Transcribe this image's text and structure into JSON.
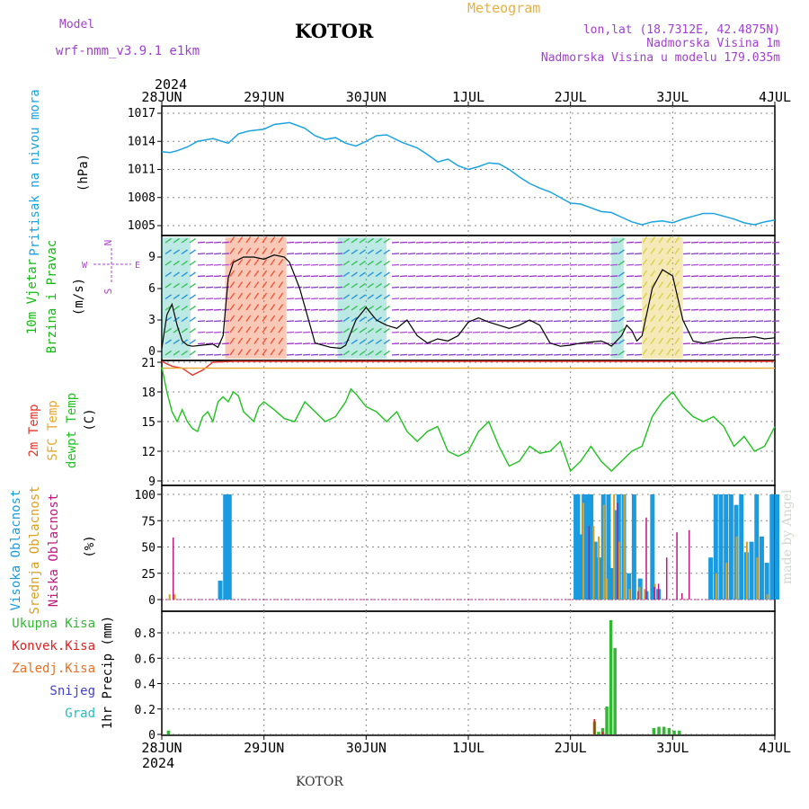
{
  "header": {
    "model_label": "Model",
    "model_name": "wrf-nmm_v3.9.1  e1km",
    "station": "KOTOR",
    "meteogram_label": "Meteogram",
    "coords": "lon,lat (18.7312E, 42.4875N)",
    "elevation": "Nadmorska Visina 1m",
    "model_elevation": "Nadmorska Visina u modelu 179.035m",
    "watermark": "made by Angel",
    "footer_station": "KOTOR"
  },
  "colors": {
    "pressure": "#1aa3e0",
    "temp2m": "#e8342a",
    "sfc_temp": "#e8a62a",
    "dewpt": "#1fc21f",
    "high_cloud": "#1a9be0",
    "mid_cloud": "#d8a020",
    "low_cloud": "#c01880",
    "total_precip": "#33b833",
    "conv_precip": "#e02020",
    "freeze": "#e87020",
    "snow": "#4040d0",
    "hail": "#20c0c0",
    "wind_label": "#11bb11",
    "wind_rose": "#b040d0"
  },
  "chart_data": [
    {
      "type": "line",
      "id": "pressure",
      "ylabel": "Pritisak na nivou mora",
      "unit": "(hPa)",
      "ylim": [
        1005,
        1017
      ],
      "yticks": [
        1005,
        1008,
        1011,
        1014,
        1017
      ],
      "x_start_label": "2024",
      "x_categories": [
        "28JUN",
        "29JUN",
        "30JUN",
        "1JUL",
        "2JUL",
        "3JUL",
        "4JUL"
      ],
      "grid": true,
      "series": [
        {
          "x": [
            0,
            0.08,
            0.15,
            0.25,
            0.35,
            0.5,
            0.65,
            0.75,
            0.85,
            1.0,
            1.1,
            1.25,
            1.4,
            1.5,
            1.6,
            1.7,
            1.8,
            1.9,
            2.0,
            2.1,
            2.2,
            2.35,
            2.5,
            2.6,
            2.7,
            2.8,
            2.9,
            3.0,
            3.1,
            3.2,
            3.3,
            3.4,
            3.5,
            3.6,
            3.7,
            3.8,
            3.9,
            4.0,
            4.1,
            4.2,
            4.3,
            4.4,
            4.5,
            4.6,
            4.7,
            4.8,
            4.9,
            5.0,
            5.1,
            5.2,
            5.3,
            5.4,
            5.5,
            5.6,
            5.7,
            5.8,
            5.9,
            6.0
          ],
          "y": [
            1012.9,
            1012.8,
            1013.0,
            1013.4,
            1014.0,
            1014.3,
            1013.8,
            1014.8,
            1015.1,
            1015.3,
            1015.8,
            1016.0,
            1015.4,
            1014.6,
            1014.2,
            1014.4,
            1013.8,
            1013.5,
            1014.0,
            1014.6,
            1014.7,
            1013.9,
            1013.3,
            1012.6,
            1011.8,
            1012.1,
            1011.4,
            1011.0,
            1011.3,
            1011.7,
            1011.6,
            1011.0,
            1010.2,
            1009.5,
            1009.0,
            1008.6,
            1008.0,
            1007.4,
            1007.3,
            1006.9,
            1006.5,
            1006.4,
            1005.9,
            1005.4,
            1005.1,
            1005.4,
            1005.5,
            1005.3,
            1005.7,
            1006.0,
            1006.3,
            1006.3,
            1006.0,
            1005.7,
            1005.3,
            1005.1,
            1005.4,
            1005.6
          ]
        }
      ]
    },
    {
      "type": "wind",
      "id": "wind",
      "ylabel": "10m Vjetar",
      "ylabel2": "Brzina i Pravac",
      "unit": "(m/s)",
      "ylim": [
        0,
        10.5
      ],
      "yticks": [
        0,
        3,
        6,
        9
      ],
      "rose": {
        "n": "N",
        "s": "S",
        "w": "W",
        "e": "E"
      },
      "speed_x": [
        0,
        0.05,
        0.1,
        0.15,
        0.2,
        0.25,
        0.3,
        0.4,
        0.5,
        0.55,
        0.6,
        0.65,
        0.7,
        0.8,
        0.9,
        1.0,
        1.1,
        1.2,
        1.25,
        1.35,
        1.5,
        1.65,
        1.75,
        1.8,
        1.9,
        2.0,
        2.1,
        2.2,
        2.3,
        2.4,
        2.5,
        2.6,
        2.7,
        2.8,
        2.9,
        3.0,
        3.1,
        3.2,
        3.3,
        3.4,
        3.5,
        3.6,
        3.7,
        3.8,
        3.9,
        4.0,
        4.1,
        4.2,
        4.3,
        4.35,
        4.4,
        4.5,
        4.55,
        4.6,
        4.65,
        4.7,
        4.8,
        4.9,
        5.0,
        5.1,
        5.2,
        5.3,
        5.4,
        5.5,
        5.6,
        5.7,
        5.8,
        5.9,
        6.0
      ],
      "speed_y": [
        0.3,
        3.5,
        4.5,
        2.5,
        1.0,
        0.6,
        0.5,
        0.6,
        0.7,
        0.4,
        1.5,
        7.0,
        8.5,
        9.0,
        9.0,
        8.8,
        9.2,
        9.0,
        8.5,
        6.0,
        0.8,
        0.4,
        0.3,
        0.6,
        3.0,
        4.2,
        3.0,
        2.5,
        2.2,
        3.0,
        1.5,
        0.8,
        1.2,
        1.0,
        1.5,
        2.8,
        3.2,
        2.8,
        2.5,
        2.2,
        2.5,
        3.0,
        2.5,
        0.8,
        0.5,
        0.6,
        0.8,
        0.9,
        1.0,
        0.8,
        0.5,
        1.5,
        2.5,
        2.0,
        1.0,
        1.5,
        6.0,
        7.8,
        7.2,
        3.0,
        1.0,
        0.8,
        1.0,
        1.2,
        1.3,
        1.3,
        1.4,
        1.2,
        1.3
      ],
      "zones": [
        {
          "x0": 0.0,
          "x1": 0.28,
          "kind": "cool"
        },
        {
          "x0": 0.62,
          "x1": 1.22,
          "kind": "hot"
        },
        {
          "x0": 1.72,
          "x1": 2.2,
          "kind": "cool"
        },
        {
          "x0": 4.4,
          "x1": 4.52,
          "kind": "cool"
        },
        {
          "x0": 4.7,
          "x1": 5.1,
          "kind": "warm"
        }
      ]
    },
    {
      "type": "line",
      "id": "temperature",
      "ylabel": "2m Temp",
      "ylabel2": "SFC Temp",
      "ylabel3": "dewpt Temp",
      "unit": "(C)",
      "ylim": [
        9,
        21
      ],
      "yticks": [
        9,
        12,
        15,
        18,
        21
      ],
      "grid": true,
      "series": [
        {
          "id": "temp2m",
          "x": [
            0,
            0.1,
            0.2,
            0.3,
            0.4,
            0.5,
            0.7,
            0.9,
            1.1,
            1.3,
            1.5,
            1.7,
            1.9,
            2.1,
            2.3,
            2.5,
            2.7,
            2.9,
            3.1,
            3.3,
            3.5,
            3.7,
            3.9,
            4.1,
            4.3,
            4.5,
            4.7,
            4.9,
            5.1,
            5.3,
            5.5,
            5.7,
            5.9,
            6.0
          ],
          "y": [
            21.2,
            20.6,
            20.4,
            19.7,
            20.2,
            21.0,
            21.5,
            21.6,
            21.8,
            21.7,
            21.9,
            21.8,
            21.6,
            21.7,
            21.9,
            21.8,
            21.6,
            21.5,
            21.7,
            21.8,
            21.6,
            21.5,
            21.7,
            21.8,
            21.6,
            21.5,
            21.7,
            21.8,
            21.6,
            21.5,
            21.7,
            21.8,
            21.6,
            21.4
          ]
        },
        {
          "id": "sfc_temp",
          "x": [
            0,
            6.0
          ],
          "y": [
            20.4,
            20.4
          ]
        },
        {
          "id": "dewpt",
          "x": [
            0,
            0.05,
            0.1,
            0.15,
            0.2,
            0.25,
            0.3,
            0.35,
            0.4,
            0.45,
            0.5,
            0.55,
            0.6,
            0.65,
            0.7,
            0.75,
            0.8,
            0.85,
            0.9,
            0.95,
            1.0,
            1.1,
            1.2,
            1.3,
            1.4,
            1.5,
            1.6,
            1.7,
            1.8,
            1.85,
            1.9,
            2.0,
            2.1,
            2.2,
            2.3,
            2.4,
            2.5,
            2.6,
            2.7,
            2.8,
            2.9,
            3.0,
            3.1,
            3.2,
            3.3,
            3.4,
            3.5,
            3.6,
            3.7,
            3.8,
            3.9,
            4.0,
            4.1,
            4.2,
            4.3,
            4.4,
            4.5,
            4.6,
            4.7,
            4.8,
            4.9,
            5.0,
            5.1,
            5.2,
            5.3,
            5.4,
            5.5,
            5.6,
            5.7,
            5.8,
            5.9,
            6.0
          ],
          "y": [
            20.5,
            18.0,
            16.0,
            15.0,
            16.2,
            15.0,
            14.3,
            14.0,
            15.5,
            16.0,
            15.0,
            17.0,
            17.5,
            17.0,
            18.0,
            17.6,
            16.0,
            15.5,
            15.0,
            16.5,
            17.0,
            16.2,
            15.3,
            15.0,
            17.0,
            16.0,
            15.0,
            15.5,
            17.0,
            18.3,
            17.8,
            16.5,
            16.0,
            15.0,
            16.0,
            14.0,
            13.0,
            14.0,
            14.5,
            12.0,
            11.5,
            12.0,
            14.0,
            15.0,
            12.5,
            10.5,
            11.0,
            12.5,
            11.8,
            12.0,
            13.0,
            10.0,
            11.0,
            12.5,
            11.0,
            10.0,
            11.0,
            12.0,
            12.5,
            15.5,
            17.0,
            18.0,
            16.5,
            15.5,
            15.0,
            15.5,
            14.5,
            12.5,
            13.5,
            12.0,
            12.5,
            14.5
          ]
        }
      ]
    },
    {
      "type": "bar",
      "id": "clouds",
      "ylabel": "Visoka Oblacnost",
      "ylabel2": "Srednja Oblacnost",
      "ylabel3": "Niska Oblacnost",
      "unit": "(%)",
      "ylim": [
        0,
        100
      ],
      "yticks": [
        0,
        25,
        50,
        75,
        100
      ],
      "grid": true,
      "series": [
        {
          "id": "high_cloud",
          "x": [
            0.55,
            0.6,
            0.62,
            0.64,
            4.03,
            4.05,
            4.08,
            4.11,
            4.14,
            4.18,
            4.22,
            4.26,
            4.3,
            4.35,
            4.38,
            4.42,
            4.45,
            4.5,
            4.55,
            4.6,
            4.66,
            4.72,
            4.78,
            4.84,
            5.35,
            5.4,
            5.45,
            5.5,
            5.55,
            5.6,
            5.65,
            5.7,
            5.75,
            5.8,
            5.85,
            5.9,
            5.95,
            6.0
          ],
          "y": [
            18,
            100,
            100,
            100,
            100,
            100,
            62,
            100,
            100,
            100,
            55,
            40,
            100,
            100,
            30,
            85,
            100,
            100,
            25,
            100,
            20,
            8,
            100,
            10,
            40,
            100,
            100,
            100,
            100,
            90,
            100,
            45,
            55,
            100,
            60,
            35,
            100,
            100
          ]
        },
        {
          "id": "mid_cloud",
          "x": [
            0.05,
            0.1,
            4.1,
            4.2,
            4.25,
            4.3,
            4.33,
            4.4,
            4.45,
            4.5,
            4.55,
            4.65,
            4.7,
            4.8,
            5.4,
            5.5,
            5.6,
            5.7,
            5.8,
            5.9
          ],
          "y": [
            5,
            5,
            92,
            70,
            60,
            90,
            20,
            100,
            55,
            100,
            10,
            12,
            10,
            15,
            25,
            35,
            60,
            55,
            40,
            5
          ]
        },
        {
          "id": "low_cloud",
          "x": [
            0.07,
            4.14,
            4.42,
            4.62,
            4.7,
            4.78,
            4.82,
            4.9,
            5.0,
            5.05,
            5.12
          ],
          "y": [
            59,
            70,
            92,
            8,
            78,
            12,
            15,
            40,
            64,
            6,
            66
          ]
        }
      ]
    },
    {
      "type": "bar",
      "id": "precip",
      "labels": [
        "Ukupna Kisa",
        "Konvek.Kisa",
        "Zaledj.Kisa",
        "Snijeg",
        "Grad"
      ],
      "ylabel": "1hr Precip",
      "unit": "(mm)",
      "ylim": [
        0,
        0.95
      ],
      "yticks": [
        0,
        0.2,
        0.4,
        0.6,
        0.8
      ],
      "ytick_labels": [
        "0",
        "0.2",
        "0.4",
        "0.6",
        "0.8"
      ],
      "grid": true,
      "series": [
        {
          "id": "total_precip",
          "x": [
            0.05,
            4.22,
            4.26,
            4.3,
            4.34,
            4.38,
            4.42,
            4.8,
            4.85,
            4.9,
            4.95,
            5.0,
            5.05
          ],
          "y": [
            0.03,
            0.1,
            0.02,
            0.05,
            0.22,
            0.9,
            0.68,
            0.05,
            0.06,
            0.06,
            0.05,
            0.03,
            0.03
          ]
        },
        {
          "id": "conv_precip",
          "x": [
            4.22,
            4.3
          ],
          "y": [
            0.12,
            0.02
          ]
        }
      ]
    }
  ]
}
